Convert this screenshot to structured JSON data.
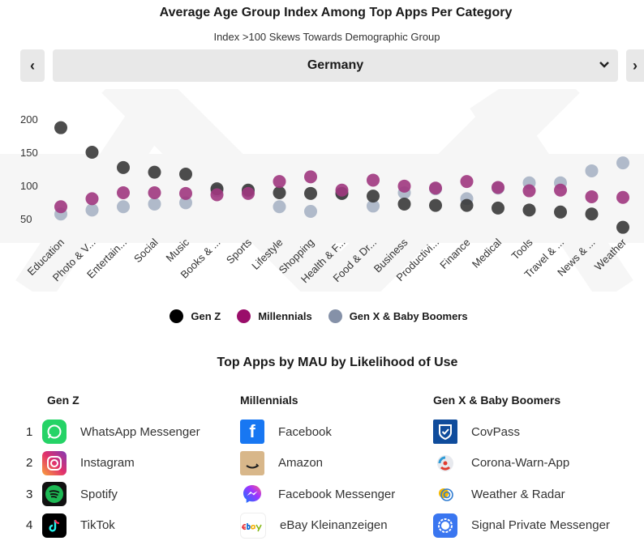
{
  "header": {
    "title": "Average Age Group Index Among Top Apps Per Category",
    "subtitle": "Index  >100 Skews Towards Demographic Group"
  },
  "selector": {
    "prev_label": "‹",
    "next_label": "›",
    "value": "Germany"
  },
  "colors": {
    "gen_z": "#3a3a3a",
    "millennials": "#a0377f",
    "gen_x": "#a3afc2"
  },
  "chart_data": {
    "type": "scatter",
    "categories": [
      "Education",
      "Photo & V...",
      "Entertain...",
      "Social",
      "Music",
      "Books & ...",
      "Sports",
      "Lifestyle",
      "Shopping",
      "Health & F...",
      "Food & Dr...",
      "Business",
      "Productivi...",
      "Finance",
      "Medical",
      "Tools",
      "Travel & ...",
      "News & ...",
      "Weather"
    ],
    "yticks": [
      200,
      150,
      100,
      50
    ],
    "ylim": [
      20,
      230
    ],
    "series": [
      {
        "name": "Gen Z",
        "values": [
          187,
          150,
          127,
          120,
          117,
          95,
          93,
          89,
          88,
          88,
          84,
          72,
          70,
          70,
          66,
          63,
          60,
          57,
          37
        ]
      },
      {
        "name": "Millennials",
        "values": [
          68,
          80,
          89,
          89,
          88,
          86,
          88,
          106,
          113,
          93,
          108,
          99,
          96,
          106,
          97,
          92,
          93,
          83,
          82
        ]
      },
      {
        "name": "Gen X & Baby Boomers",
        "values": [
          57,
          63,
          68,
          72,
          74,
          92,
          91,
          68,
          61,
          88,
          69,
          89,
          95,
          80,
          96,
          104,
          104,
          122,
          134
        ]
      }
    ]
  },
  "legend": [
    "Gen Z",
    "Millennials",
    "Gen X & Baby Boomers"
  ],
  "top_apps": {
    "title": "Top Apps by MAU by Likelihood of Use",
    "columns": [
      {
        "heading": "Gen Z",
        "apps": [
          {
            "rank": "1",
            "name": "WhatsApp Messenger",
            "icon": "whatsapp-icon"
          },
          {
            "rank": "2",
            "name": "Instagram",
            "icon": "instagram-icon"
          },
          {
            "rank": "3",
            "name": "Spotify",
            "icon": "spotify-icon"
          },
          {
            "rank": "4",
            "name": "TikTok",
            "icon": "tiktok-icon"
          }
        ]
      },
      {
        "heading": "Millennials",
        "apps": [
          {
            "name": "Facebook",
            "icon": "facebook-icon"
          },
          {
            "name": "Amazon",
            "icon": "amazon-icon"
          },
          {
            "name": "Facebook Messenger",
            "icon": "messenger-icon"
          },
          {
            "name": "eBay Kleinanzeigen",
            "icon": "ebay-icon"
          }
        ]
      },
      {
        "heading": "Gen X & Baby Boomers",
        "apps": [
          {
            "name": "CovPass",
            "icon": "covpass-icon"
          },
          {
            "name": "Corona-Warn-App",
            "icon": "corona-warn-icon"
          },
          {
            "name": "Weather & Radar",
            "icon": "weather-radar-icon"
          },
          {
            "name": "Signal Private Messenger",
            "icon": "signal-icon"
          }
        ]
      }
    ]
  }
}
